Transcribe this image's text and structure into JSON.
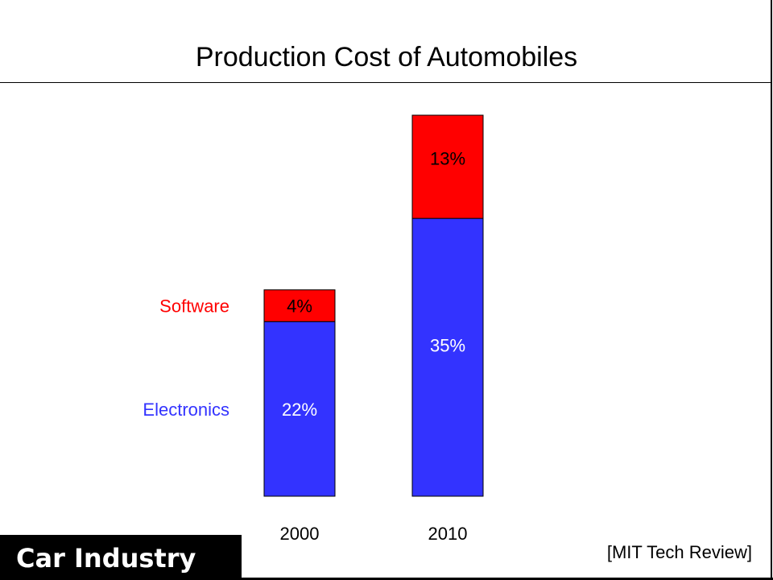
{
  "slide": {
    "footer_label": "Car Industry",
    "source": "[MIT Tech Review]"
  },
  "colors": {
    "software": "#ff0000",
    "electronics": "#3333ff",
    "text": "#000000"
  },
  "chart_data": {
    "type": "bar",
    "stacked": true,
    "title": "Production Cost of Automobiles",
    "categories": [
      "2000",
      "2010"
    ],
    "series": [
      {
        "name": "Electronics",
        "values": [
          22,
          35
        ],
        "labels": [
          "22%",
          "35%"
        ]
      },
      {
        "name": "Software",
        "values": [
          4,
          13
        ],
        "labels": [
          "4%",
          "13%"
        ]
      }
    ],
    "ylim": [
      0,
      48
    ],
    "xlabel": "",
    "ylabel": "",
    "grid": false,
    "legend": "left"
  }
}
